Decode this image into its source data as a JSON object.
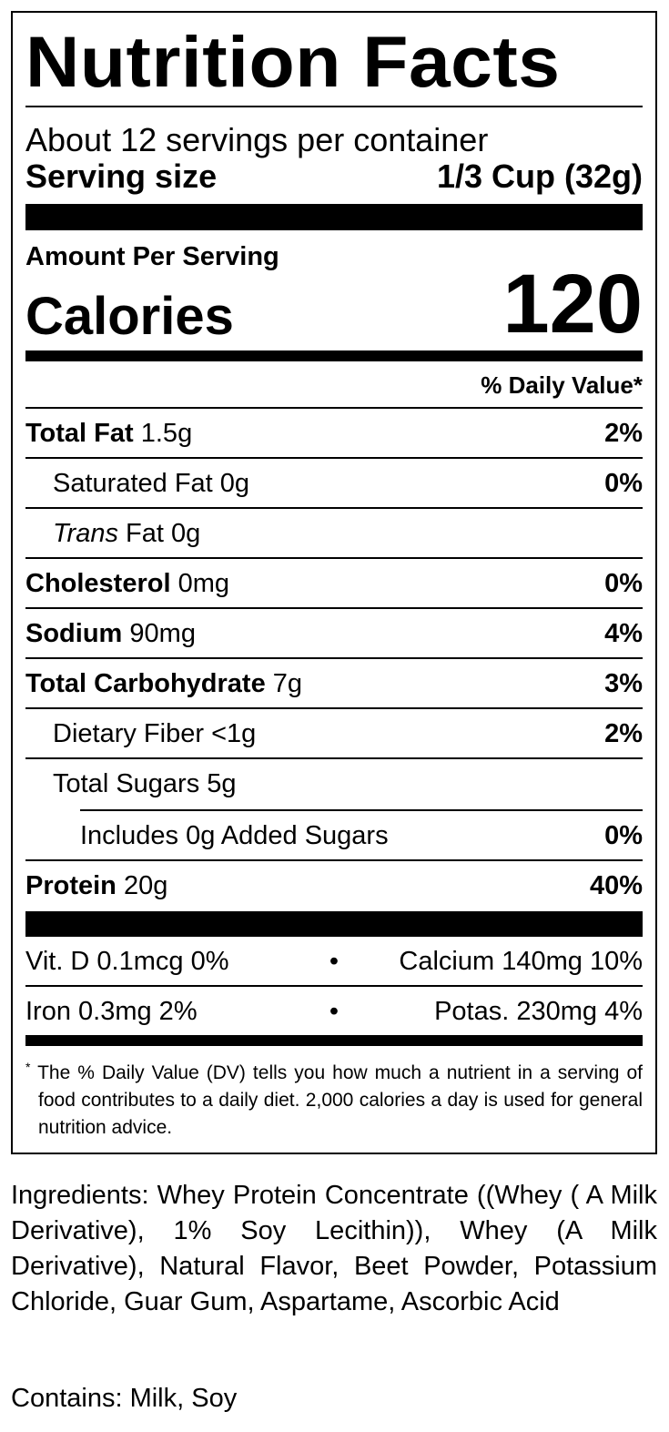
{
  "title": "Nutrition Facts",
  "servings_per_container": "About 12 servings per container",
  "serving_size": {
    "label": "Serving size",
    "value": "1/3 Cup (32g)"
  },
  "amount_per_serving": "Amount Per Serving",
  "calories": {
    "label": "Calories",
    "value": "120"
  },
  "daily_value_header": "% Daily Value*",
  "nutrients": [
    {
      "name": "Total Fat",
      "amount": "1.5g",
      "dv": "2%"
    },
    {
      "name": "Saturated Fat",
      "amount": "0g",
      "dv": "0%"
    },
    {
      "name": "Trans",
      "name_suffix": "Fat",
      "amount": "0g",
      "dv": ""
    },
    {
      "name": "Cholesterol",
      "amount": "0mg",
      "dv": "0%"
    },
    {
      "name": "Sodium",
      "amount": "90mg",
      "dv": "4%"
    },
    {
      "name": "Total Carbohydrate",
      "amount": "7g",
      "dv": "3%"
    },
    {
      "name": "Dietary Fiber",
      "amount": "<1g",
      "dv": "2%"
    },
    {
      "name": "Total Sugars",
      "amount": "5g",
      "dv": ""
    },
    {
      "name": "Includes 0g Added Sugars",
      "amount": "",
      "dv": "0%"
    },
    {
      "name": "Protein",
      "amount": "20g",
      "dv": "40%"
    }
  ],
  "vitamins": [
    {
      "left": "Vit. D 0.1mcg 0%",
      "sep": "•",
      "right": "Calcium 140mg 10%"
    },
    {
      "left": "Iron 0.3mg 2%",
      "sep": "•",
      "right": "Potas. 230mg 4%"
    }
  ],
  "footnote": {
    "mark": "*",
    "text": "The % Daily Value (DV) tells you how much a nutrient in a serving of food contributes to a daily diet. 2,000 calories a day is used for general nutrition advice."
  },
  "ingredients": "Ingredients: Whey Protein Concentrate ((Whey ( A Milk Derivative), 1% Soy Lecithin)), Whey (A Milk Derivative), Natural Flavor, Beet Powder, Potassium Chloride, Guar Gum, Aspartame, Ascorbic Acid",
  "contains": "Contains: Milk, Soy"
}
